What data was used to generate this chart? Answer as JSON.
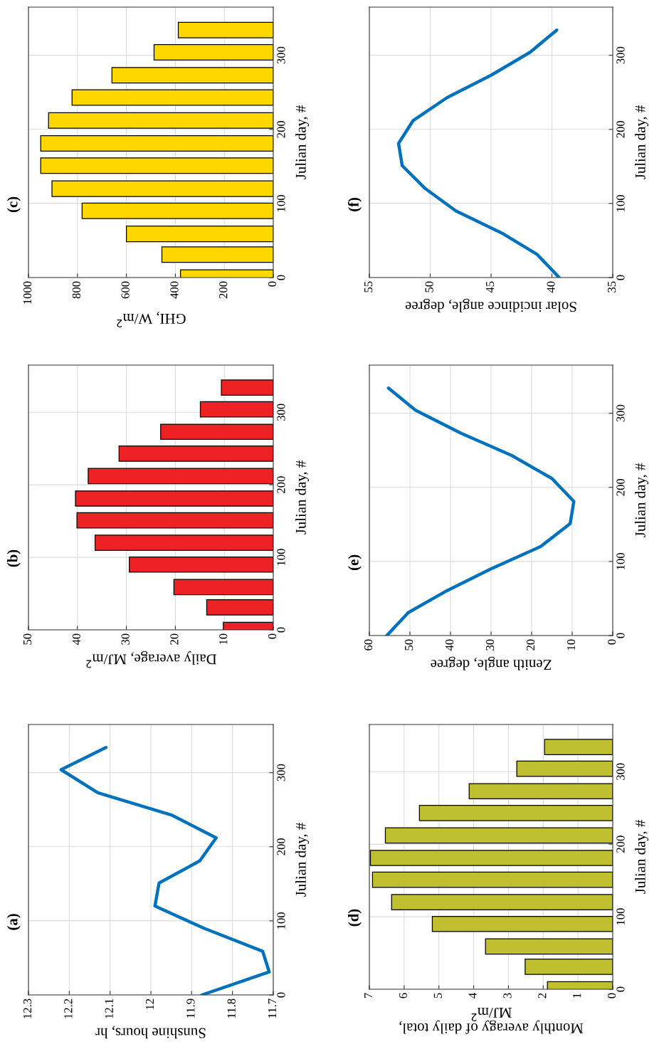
{
  "chart_data": [
    {
      "type": "line",
      "title": "(a)",
      "ylabel": "Julian day, #",
      "xlabel": "Sunshine hours, hr",
      "x": [
        11.875,
        11.71,
        11.726,
        11.87,
        11.99,
        11.98,
        11.88,
        11.84,
        11.95,
        12.13,
        12.22,
        12.11
      ],
      "values": [
        0,
        31,
        59,
        90,
        120,
        151,
        181,
        212,
        243,
        273,
        304,
        334
      ],
      "color": "#0072bd",
      "ylim": [
        0,
        365
      ],
      "yticks": [
        0,
        100,
        200,
        300
      ],
      "xlim": [
        12.3,
        11.7
      ],
      "xticks": [
        11.7,
        11.8,
        11.9,
        12,
        12.1,
        12.2,
        12.3
      ],
      "grid": true
    },
    {
      "type": "bar",
      "orientation": "horizontal",
      "title": "(b)",
      "ylabel": "Julian day, #",
      "xlabel": "Daily average, MJ/m$^{2}$",
      "x": [
        0,
        31,
        59,
        90,
        120,
        151,
        181,
        212,
        243,
        273,
        304,
        334
      ],
      "values": [
        10.2,
        13.6,
        20.3,
        29.4,
        36.4,
        40.1,
        40.4,
        37.8,
        31.5,
        23.0,
        14.9,
        10.6
      ],
      "color": "#ee2224",
      "ylim": [
        0,
        365
      ],
      "yticks": [
        0,
        100,
        200,
        300
      ],
      "xlim": [
        50,
        0
      ],
      "xticks": [
        0,
        10,
        20,
        30,
        40,
        50
      ],
      "grid": true
    },
    {
      "type": "bar",
      "orientation": "horizontal",
      "title": "(c)",
      "ylabel": "Julian day, #",
      "xlabel": "GHI, W/m$^{2}$",
      "x": [
        0,
        31,
        59,
        90,
        120,
        151,
        181,
        212,
        243,
        273,
        304,
        334
      ],
      "values": [
        379,
        455,
        600,
        781,
        904,
        950,
        950,
        918,
        822,
        659,
        487,
        388
      ],
      "color": "#ffd700",
      "ylim": [
        0,
        365
      ],
      "yticks": [
        0,
        100,
        200,
        300
      ],
      "xlim": [
        1000,
        0
      ],
      "xticks": [
        0,
        200,
        400,
        600,
        800,
        1000
      ],
      "grid": true
    },
    {
      "type": "bar",
      "orientation": "horizontal",
      "title": "(d)",
      "ylabel": "Julian day, #",
      "xlabel": "Monthly averagy of daily total,\nMJ/m$^{2}$",
      "x": [
        0,
        31,
        59,
        90,
        120,
        151,
        181,
        212,
        243,
        273,
        304,
        334
      ],
      "values": [
        1.88,
        2.52,
        3.66,
        5.19,
        6.36,
        6.91,
        6.97,
        6.54,
        5.56,
        4.13,
        2.76,
        1.96
      ],
      "color": "#bfbf30",
      "ylim": [
        0,
        365
      ],
      "yticks": [
        0,
        100,
        200,
        300
      ],
      "xlim": [
        7,
        0
      ],
      "xticks": [
        0,
        1,
        2,
        3,
        4,
        5,
        6,
        7
      ],
      "grid": true
    },
    {
      "type": "line",
      "title": "(e)",
      "ylabel": "Julian day, #",
      "xlabel": "Zenith angle, degree",
      "x": [
        55.7,
        50.4,
        41.4,
        30.0,
        17.8,
        10.5,
        9.6,
        15.0,
        24.9,
        37.4,
        48.6,
        55.3
      ],
      "values": [
        0,
        31,
        59,
        90,
        120,
        151,
        181,
        212,
        243,
        273,
        304,
        334
      ],
      "color": "#0072bd",
      "ylim": [
        0,
        365
      ],
      "yticks": [
        0,
        100,
        200,
        300
      ],
      "xlim": [
        60,
        0
      ],
      "xticks": [
        0,
        10,
        20,
        30,
        40,
        50,
        60
      ],
      "grid": true
    },
    {
      "type": "line",
      "title": "(f)",
      "ylabel": "Julian day, #",
      "xlabel": "Solar incidince angle, degree",
      "x": [
        39.4,
        41.2,
        44.0,
        47.9,
        50.4,
        52.3,
        52.6,
        51.4,
        48.6,
        45.0,
        41.8,
        39.6
      ],
      "values": [
        0,
        31,
        59,
        90,
        120,
        151,
        181,
        212,
        243,
        273,
        304,
        334
      ],
      "color": "#0072bd",
      "ylim": [
        0,
        365
      ],
      "yticks": [
        0,
        100,
        200,
        300
      ],
      "xlim": [
        55,
        35
      ],
      "xticks": [
        35,
        40,
        45,
        50,
        55
      ],
      "grid": true
    }
  ]
}
